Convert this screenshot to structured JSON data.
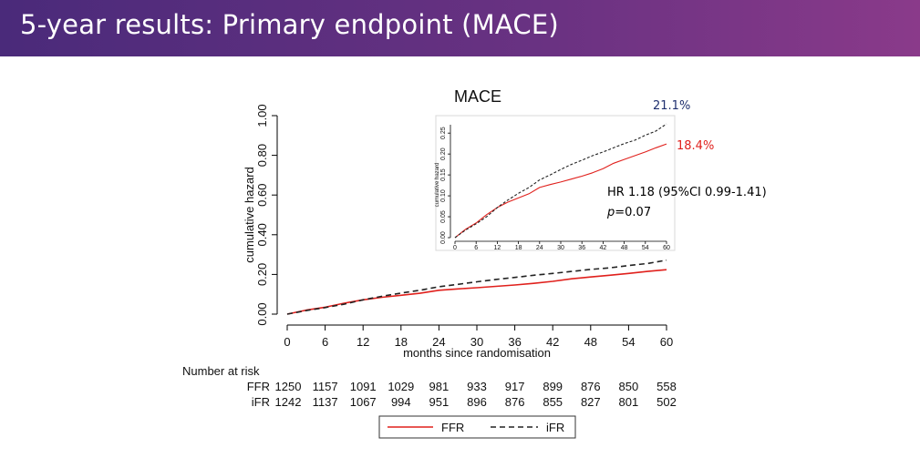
{
  "header": {
    "title": "5-year results: Primary endpoint (MACE)"
  },
  "chart_data": {
    "type": "line",
    "title": "MACE",
    "xlabel": "months since randomisation",
    "ylabel": "cumulative hazard",
    "xlim": [
      0,
      60
    ],
    "ylim": [
      0,
      1
    ],
    "x_ticks": [
      "0",
      "6",
      "12",
      "18",
      "24",
      "30",
      "36",
      "42",
      "48",
      "54",
      "60"
    ],
    "y_ticks": [
      "0.00",
      "0.20",
      "0.40",
      "0.60",
      "0.80",
      "1.00"
    ],
    "colors": {
      "FFR": "#e0201c",
      "iFR": "#222222"
    },
    "series": [
      {
        "name": "FFR",
        "style": "solid",
        "x": [
          0,
          3,
          6,
          9,
          12,
          15,
          18,
          21,
          24,
          27,
          30,
          33,
          36,
          39,
          42,
          45,
          48,
          51,
          54,
          57,
          60
        ],
        "y": [
          0.0,
          0.02,
          0.035,
          0.055,
          0.072,
          0.085,
          0.095,
          0.105,
          0.12,
          0.127,
          0.133,
          0.14,
          0.147,
          0.155,
          0.165,
          0.178,
          0.187,
          0.196,
          0.205,
          0.215,
          0.224
        ]
      },
      {
        "name": "iFR",
        "style": "dashed",
        "x": [
          0,
          3,
          6,
          9,
          12,
          15,
          18,
          21,
          24,
          27,
          30,
          33,
          36,
          39,
          42,
          45,
          48,
          51,
          54,
          57,
          60
        ],
        "y": [
          0.0,
          0.018,
          0.033,
          0.05,
          0.072,
          0.09,
          0.106,
          0.12,
          0.138,
          0.15,
          0.163,
          0.175,
          0.185,
          0.196,
          0.205,
          0.215,
          0.225,
          0.233,
          0.245,
          0.255,
          0.272
        ]
      }
    ],
    "inset": {
      "ylabel": "cumulative hazard",
      "xlim": [
        0,
        60
      ],
      "ylim": [
        0,
        0.27
      ],
      "x_ticks": [
        "0",
        "6",
        "12",
        "18",
        "24",
        "30",
        "36",
        "42",
        "48",
        "54",
        "60"
      ],
      "y_ticks": [
        "0.00",
        "0.05",
        "0.10",
        "0.15",
        "0.20",
        "0.25"
      ]
    },
    "annotations": {
      "ifr_pct": "21.1%",
      "ffr_pct": "18.4%",
      "hr": "HR 1.18 (95%CI 0.99-1.41)",
      "p_label": "p",
      "p_value": "=0.07"
    },
    "risk_table": {
      "title": "Number at risk",
      "rows": [
        {
          "label": "FFR",
          "values": [
            "1250",
            "1157",
            "1091",
            "1029",
            "981",
            "933",
            "917",
            "899",
            "876",
            "850",
            "558"
          ]
        },
        {
          "label": "iFR",
          "values": [
            "1242",
            "1137",
            "1067",
            "994",
            "951",
            "896",
            "876",
            "855",
            "827",
            "801",
            "502"
          ]
        }
      ]
    },
    "legend": {
      "position": "bottom",
      "items": [
        "FFR",
        "iFR"
      ]
    }
  }
}
